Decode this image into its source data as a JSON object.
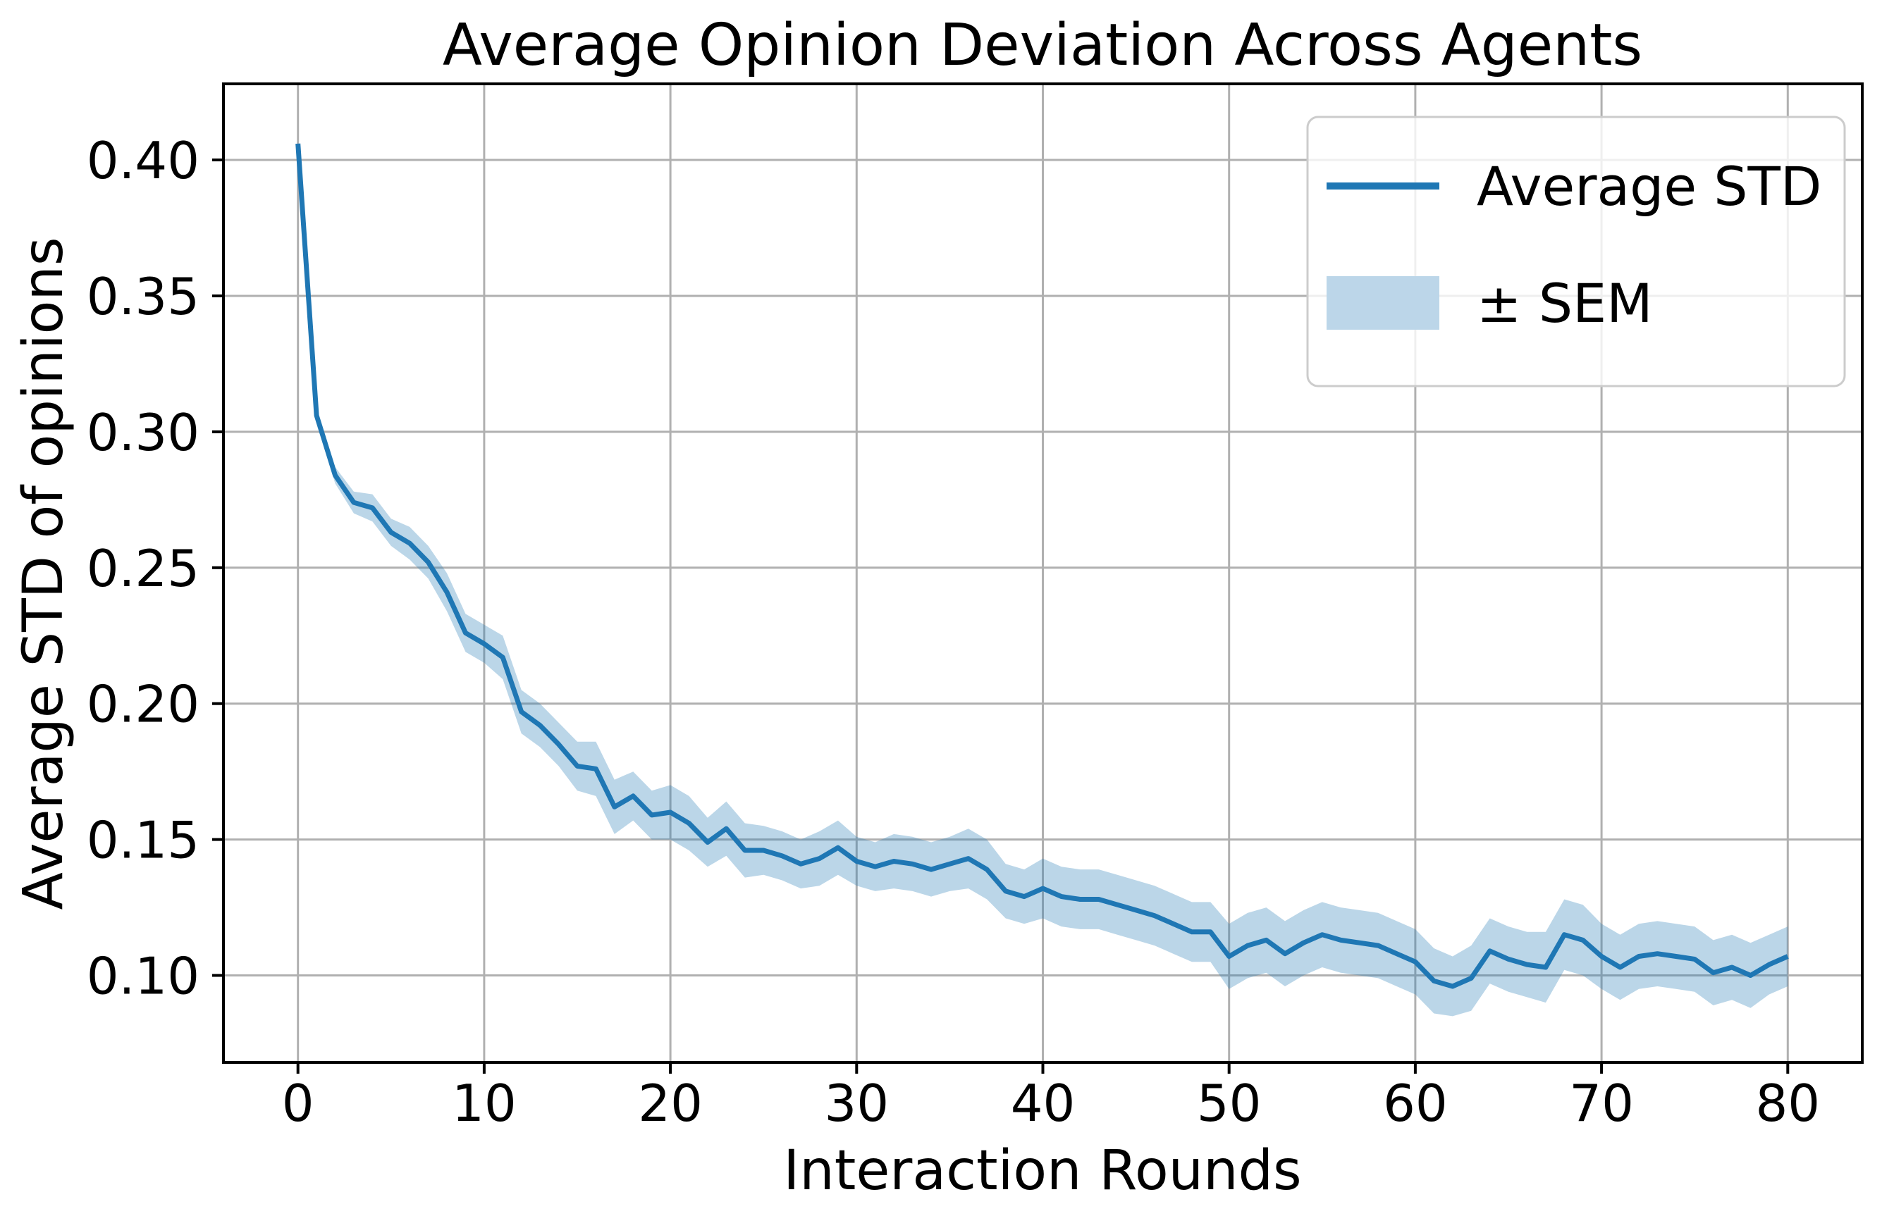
{
  "figure": {
    "background": "#ffffff"
  },
  "legend": {
    "position": "upper right",
    "entries": [
      {
        "label": "Average STD",
        "type": "line",
        "color": "#1f77b4"
      },
      {
        "label": "± SEM",
        "type": "patch",
        "color": "#bcd6e9"
      }
    ]
  },
  "chart_data": {
    "type": "line",
    "title": "Average Opinion Deviation Across Agents",
    "xlabel": "Interaction Rounds",
    "ylabel": "Average STD of opinions",
    "x": [
      0,
      1,
      2,
      3,
      4,
      5,
      6,
      7,
      8,
      9,
      10,
      11,
      12,
      13,
      14,
      15,
      16,
      17,
      18,
      19,
      20,
      21,
      22,
      23,
      24,
      25,
      26,
      27,
      28,
      29,
      30,
      31,
      32,
      33,
      34,
      35,
      36,
      37,
      38,
      39,
      40,
      41,
      42,
      43,
      44,
      45,
      46,
      47,
      48,
      49,
      50,
      51,
      52,
      53,
      54,
      55,
      56,
      57,
      58,
      59,
      60,
      61,
      62,
      63,
      64,
      65,
      66,
      67,
      68,
      69,
      70,
      71,
      72,
      73,
      74,
      75,
      76,
      77,
      78,
      79,
      80
    ],
    "series": [
      {
        "name": "Average STD",
        "values": [
          0.406,
          0.306,
          0.284,
          0.274,
          0.272,
          0.263,
          0.259,
          0.252,
          0.241,
          0.226,
          0.222,
          0.217,
          0.197,
          0.192,
          0.185,
          0.177,
          0.176,
          0.162,
          0.166,
          0.159,
          0.16,
          0.156,
          0.149,
          0.154,
          0.146,
          0.146,
          0.144,
          0.141,
          0.143,
          0.147,
          0.142,
          0.14,
          0.142,
          0.141,
          0.139,
          0.141,
          0.143,
          0.139,
          0.131,
          0.129,
          0.132,
          0.129,
          0.128,
          0.128,
          0.126,
          0.124,
          0.122,
          0.119,
          0.116,
          0.116,
          0.107,
          0.111,
          0.113,
          0.108,
          0.112,
          0.115,
          0.113,
          0.112,
          0.111,
          0.108,
          0.105,
          0.098,
          0.096,
          0.099,
          0.109,
          0.106,
          0.104,
          0.103,
          0.115,
          0.113,
          0.107,
          0.103,
          0.107,
          0.108,
          0.107,
          0.106,
          0.101,
          0.103,
          0.1,
          0.104,
          0.107
        ]
      }
    ],
    "sem_band": {
      "name": "± SEM",
      "half_widths": [
        0.001,
        0.002,
        0.003,
        0.004,
        0.005,
        0.005,
        0.006,
        0.006,
        0.007,
        0.007,
        0.007,
        0.008,
        0.008,
        0.008,
        0.008,
        0.009,
        0.01,
        0.01,
        0.009,
        0.009,
        0.01,
        0.01,
        0.009,
        0.01,
        0.01,
        0.009,
        0.009,
        0.009,
        0.01,
        0.01,
        0.009,
        0.009,
        0.01,
        0.01,
        0.01,
        0.01,
        0.011,
        0.011,
        0.01,
        0.01,
        0.011,
        0.011,
        0.011,
        0.011,
        0.011,
        0.011,
        0.011,
        0.011,
        0.011,
        0.011,
        0.012,
        0.012,
        0.012,
        0.012,
        0.012,
        0.012,
        0.012,
        0.012,
        0.012,
        0.012,
        0.012,
        0.012,
        0.011,
        0.012,
        0.012,
        0.012,
        0.012,
        0.013,
        0.013,
        0.013,
        0.012,
        0.012,
        0.012,
        0.012,
        0.012,
        0.012,
        0.012,
        0.012,
        0.012,
        0.011,
        0.011
      ]
    },
    "xlim": [
      -4,
      84
    ],
    "ylim": [
      0.068,
      0.428
    ],
    "xticks": [
      0,
      10,
      20,
      30,
      40,
      50,
      60,
      70,
      80
    ],
    "xtick_labels": [
      "0",
      "10",
      "20",
      "30",
      "40",
      "50",
      "60",
      "70",
      "80"
    ],
    "yticks": [
      0.1,
      0.15,
      0.2,
      0.25,
      0.3,
      0.35,
      0.4
    ],
    "ytick_labels": [
      "0.10",
      "0.15",
      "0.20",
      "0.25",
      "0.30",
      "0.35",
      "0.40"
    ],
    "grid": true,
    "legend_position": "upper right",
    "colors": {
      "line": "#1f77b4",
      "band_fill": "#1f77b4",
      "band_opacity": "0.3",
      "band_flat": "#bcd6e9",
      "grid": "#b0b0b0",
      "spine": "#000000",
      "legend_border": "#cccccc",
      "legend_background": "#ffffff"
    }
  }
}
